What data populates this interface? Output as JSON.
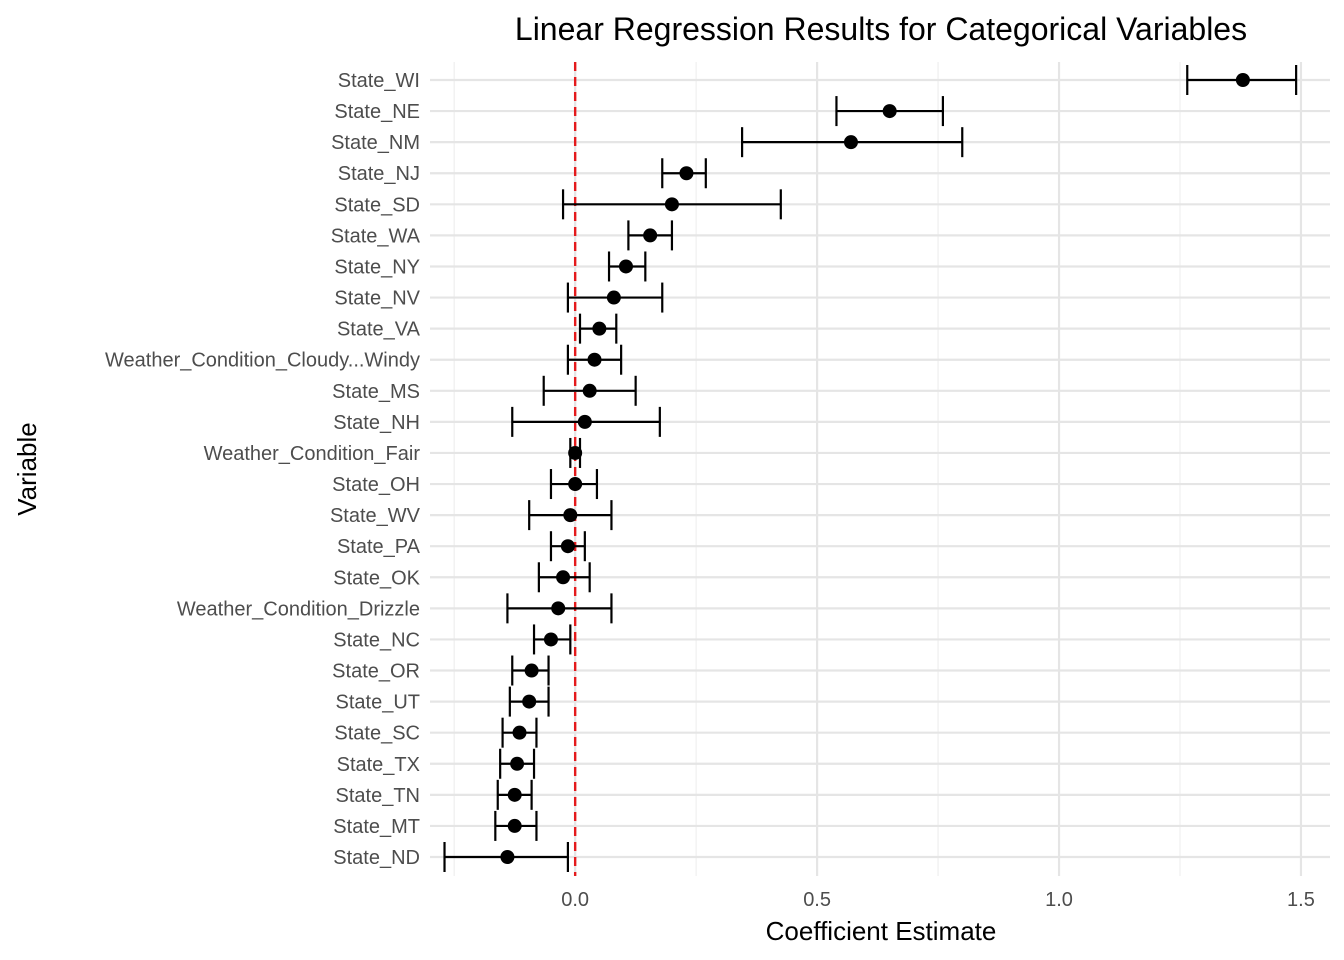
{
  "chart_data": {
    "type": "scatter",
    "title": "Linear Regression Results for Categorical Variables",
    "xlabel": "Coefficient Estimate",
    "ylabel": "Variable",
    "xlim": [
      -0.3,
      1.56
    ],
    "xticks": [
      0.0,
      0.5,
      1.0,
      1.5
    ],
    "xtick_labels": [
      "0.0",
      "0.5",
      "1.0",
      "1.5"
    ],
    "reference_line": {
      "x": 0.0,
      "color": "#e41a1c",
      "style": "dashed"
    },
    "grid": true,
    "point_color": "#000000",
    "points": [
      {
        "label": "State_WI",
        "estimate": 1.38,
        "lower": 1.265,
        "upper": 1.49
      },
      {
        "label": "State_NE",
        "estimate": 0.65,
        "lower": 0.54,
        "upper": 0.76
      },
      {
        "label": "State_NM",
        "estimate": 0.57,
        "lower": 0.345,
        "upper": 0.8
      },
      {
        "label": "State_NJ",
        "estimate": 0.23,
        "lower": 0.18,
        "upper": 0.27
      },
      {
        "label": "State_SD",
        "estimate": 0.2,
        "lower": -0.025,
        "upper": 0.425
      },
      {
        "label": "State_WA",
        "estimate": 0.155,
        "lower": 0.11,
        "upper": 0.2
      },
      {
        "label": "State_NY",
        "estimate": 0.105,
        "lower": 0.07,
        "upper": 0.145
      },
      {
        "label": "State_NV",
        "estimate": 0.08,
        "lower": -0.015,
        "upper": 0.18
      },
      {
        "label": "State_VA",
        "estimate": 0.05,
        "lower": 0.01,
        "upper": 0.085
      },
      {
        "label": "Weather_Condition_Cloudy...Windy",
        "estimate": 0.04,
        "lower": -0.015,
        "upper": 0.095
      },
      {
        "label": "State_MS",
        "estimate": 0.03,
        "lower": -0.065,
        "upper": 0.125
      },
      {
        "label": "State_NH",
        "estimate": 0.02,
        "lower": -0.13,
        "upper": 0.175
      },
      {
        "label": "Weather_Condition_Fair",
        "estimate": 0.0,
        "lower": -0.01,
        "upper": 0.01
      },
      {
        "label": "State_OH",
        "estimate": 0.0,
        "lower": -0.05,
        "upper": 0.045
      },
      {
        "label": "State_WV",
        "estimate": -0.01,
        "lower": -0.095,
        "upper": 0.075
      },
      {
        "label": "State_PA",
        "estimate": -0.015,
        "lower": -0.05,
        "upper": 0.02
      },
      {
        "label": "State_OK",
        "estimate": -0.025,
        "lower": -0.075,
        "upper": 0.03
      },
      {
        "label": "Weather_Condition_Drizzle",
        "estimate": -0.035,
        "lower": -0.14,
        "upper": 0.075
      },
      {
        "label": "State_NC",
        "estimate": -0.05,
        "lower": -0.085,
        "upper": -0.01
      },
      {
        "label": "State_OR",
        "estimate": -0.09,
        "lower": -0.13,
        "upper": -0.055
      },
      {
        "label": "State_UT",
        "estimate": -0.095,
        "lower": -0.135,
        "upper": -0.055
      },
      {
        "label": "State_SC",
        "estimate": -0.115,
        "lower": -0.15,
        "upper": -0.08
      },
      {
        "label": "State_TX",
        "estimate": -0.12,
        "lower": -0.155,
        "upper": -0.085
      },
      {
        "label": "State_TN",
        "estimate": -0.125,
        "lower": -0.16,
        "upper": -0.09
      },
      {
        "label": "State_MT",
        "estimate": -0.125,
        "lower": -0.165,
        "upper": -0.08
      },
      {
        "label": "State_ND",
        "estimate": -0.14,
        "lower": -0.27,
        "upper": -0.015
      }
    ]
  }
}
